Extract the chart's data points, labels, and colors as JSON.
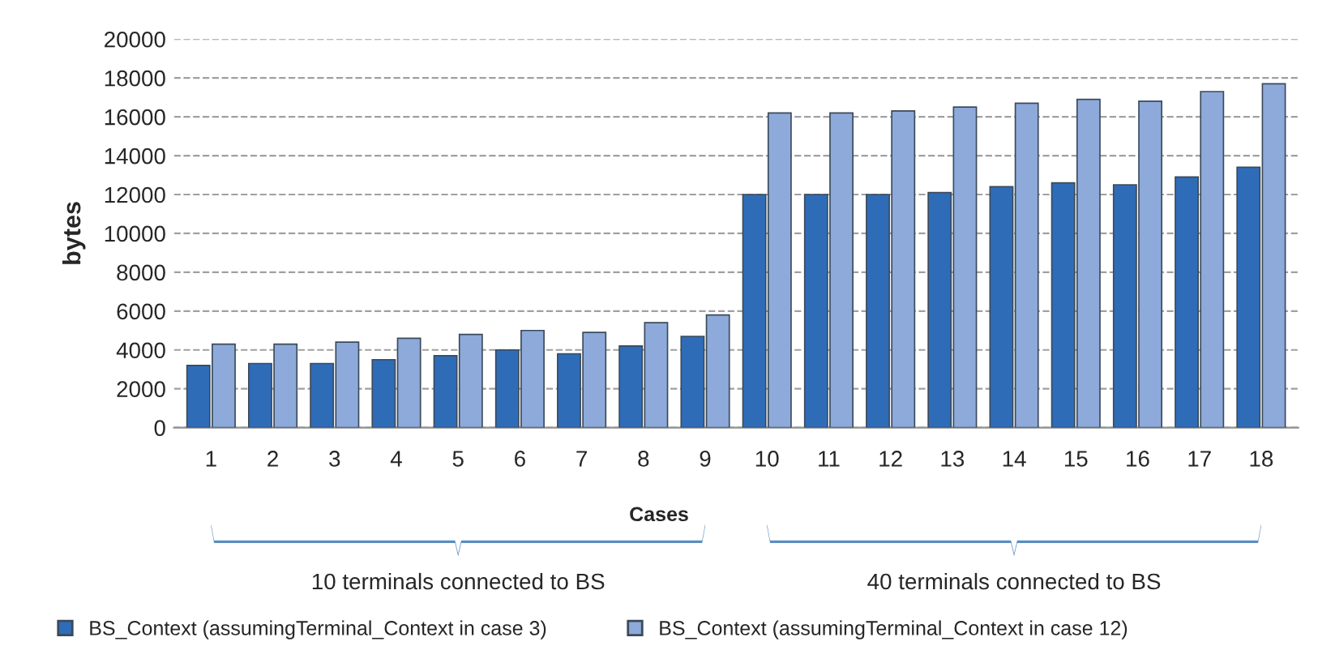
{
  "chart_data": {
    "type": "bar",
    "xlabel": "Cases",
    "ylabel": "bytes",
    "categories": [
      "1",
      "2",
      "3",
      "4",
      "5",
      "6",
      "7",
      "8",
      "9",
      "10",
      "11",
      "12",
      "13",
      "14",
      "15",
      "16",
      "17",
      "18"
    ],
    "series": [
      {
        "name": "BS_Context (assumingTerminal_Context in case 3)",
        "color": "#2f6cb8",
        "values": [
          3200,
          3300,
          3300,
          3500,
          3700,
          4000,
          3800,
          4200,
          4700,
          12000,
          12000,
          12000,
          12100,
          12400,
          12600,
          12500,
          12900,
          13400
        ]
      },
      {
        "name": "BS_Context (assumingTerminal_Context in case 12)",
        "color": "#8eaadb",
        "values": [
          4300,
          4300,
          4400,
          4600,
          4800,
          5000,
          4900,
          5400,
          5800,
          16200,
          16200,
          16300,
          16500,
          16700,
          16900,
          16800,
          17300,
          17700
        ]
      }
    ],
    "ylim": [
      0,
      20000
    ],
    "yticks": [
      0,
      2000,
      4000,
      6000,
      8000,
      10000,
      12000,
      14000,
      16000,
      18000,
      20000
    ],
    "grid": "y",
    "legend": "bottom",
    "annotations": [
      "10 terminals connected to BS",
      "40 terminals connected to BS"
    ]
  }
}
